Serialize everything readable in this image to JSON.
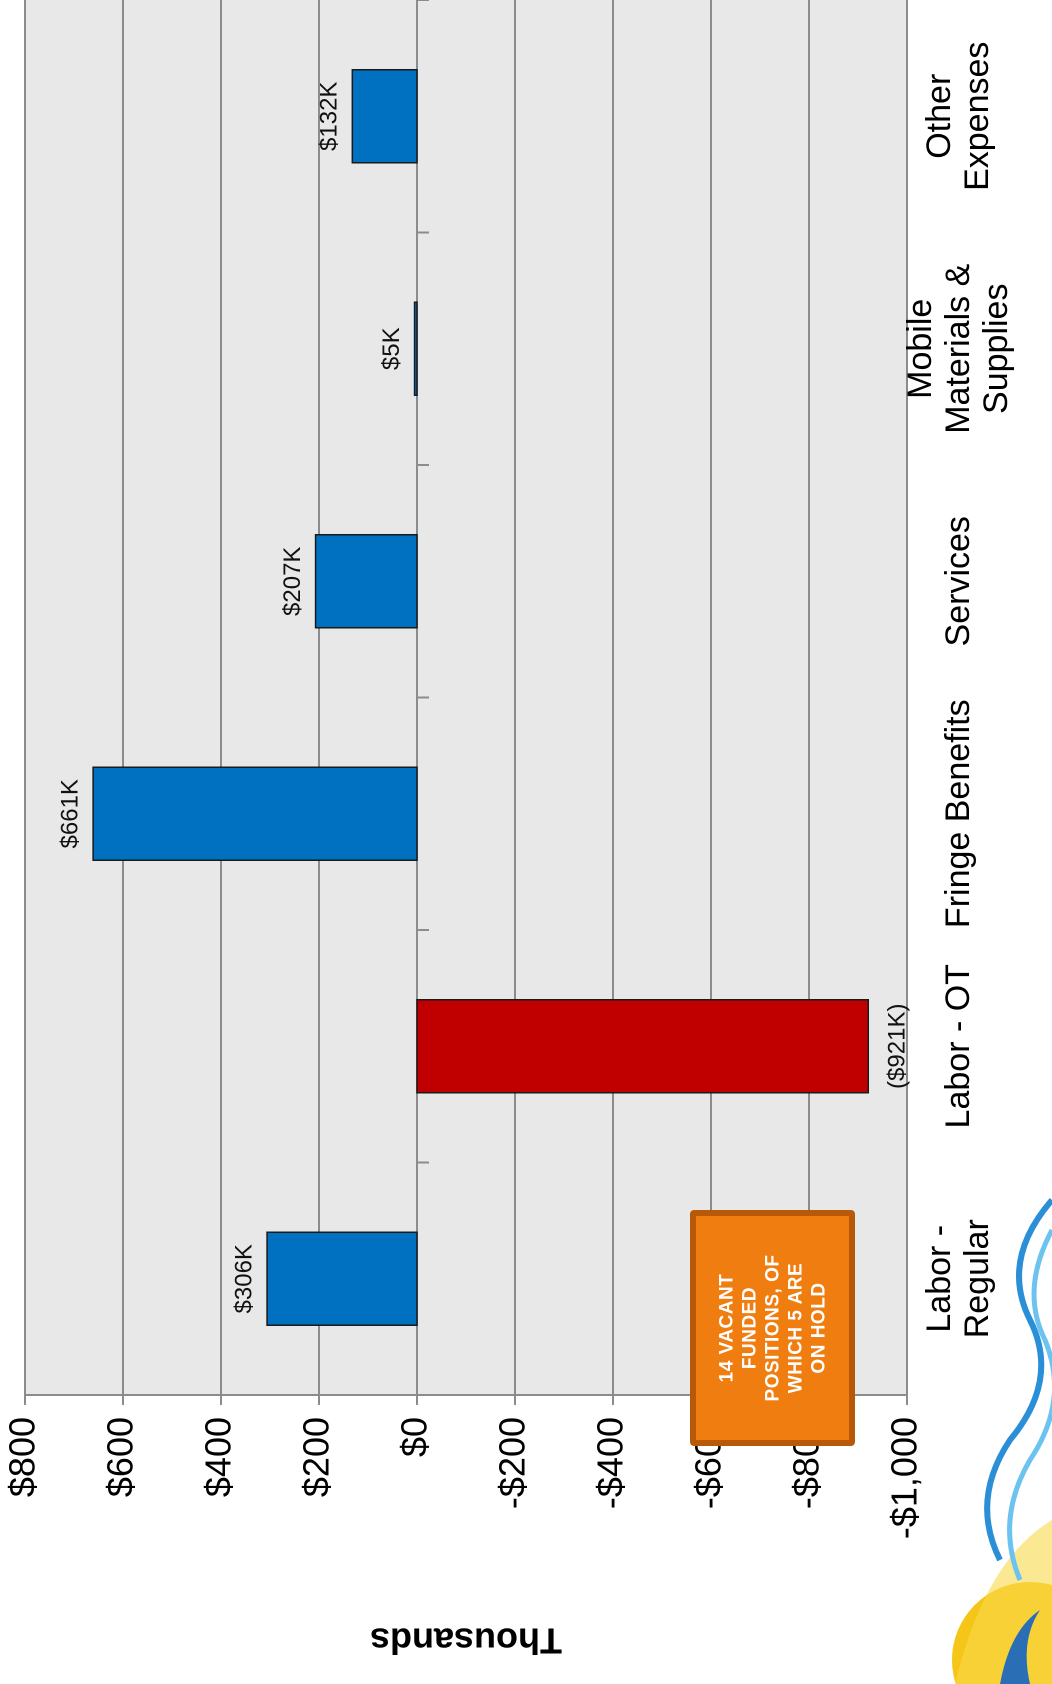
{
  "chart_data": {
    "type": "bar",
    "orientation": "horizontal",
    "categories": [
      "Labor - Regular",
      "Labor - OT",
      "Fringe Benefits",
      "Services",
      "Mobile Materials & Supplies",
      "Other Expenses"
    ],
    "category_lines": [
      [
        "Labor -",
        "Regular"
      ],
      [
        "Labor - OT"
      ],
      [
        "Fringe Benefits"
      ],
      [
        "Services"
      ],
      [
        "Mobile",
        "Materials &",
        "Supplies"
      ],
      [
        "Other",
        "Expenses"
      ]
    ],
    "values": [
      306,
      -921,
      661,
      207,
      5,
      132
    ],
    "data_labels": [
      "$306K",
      "($921K)",
      "$661K",
      "$207K",
      "$5K",
      "$132K"
    ],
    "colors": [
      "#0070c0",
      "#c00000",
      "#0070c0",
      "#0070c0",
      "#0070c0",
      "#0070c0"
    ],
    "ylabel": "Thousands",
    "ylim": [
      -1000,
      800
    ],
    "yticks": [
      800,
      600,
      400,
      200,
      0,
      -200,
      -400,
      -600,
      -800,
      -1000
    ],
    "ytick_labels": [
      "$800",
      "$600",
      "$400",
      "$200",
      "$0",
      "-$200",
      "-$400",
      "-$600",
      "-$800",
      "-$1,000"
    ],
    "grid": true
  },
  "annotation": {
    "lines": [
      "14 VACANT",
      "FUNDED",
      "POSITIONS, OF",
      "WHICH 5 ARE",
      "ON HOLD"
    ],
    "color": "#ef7d0f"
  }
}
